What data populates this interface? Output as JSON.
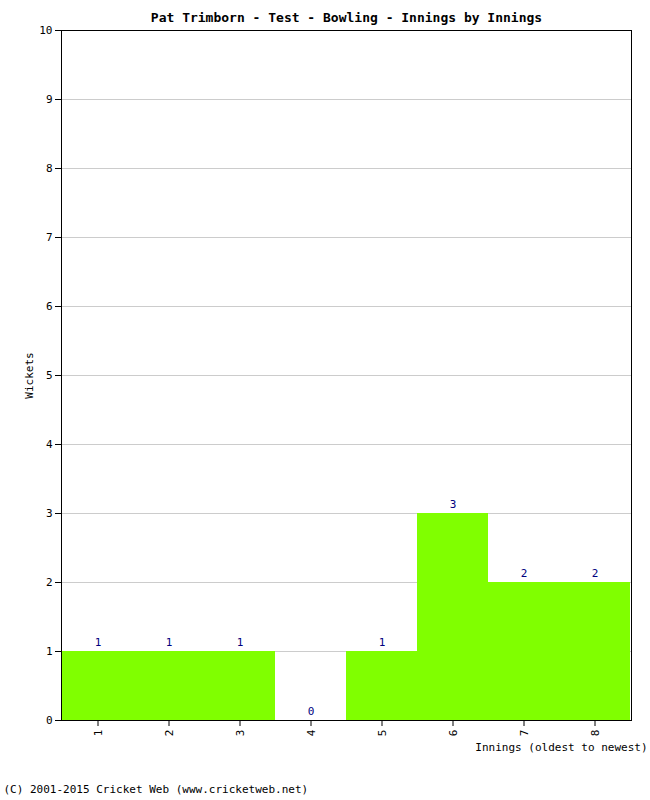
{
  "chart_data": {
    "type": "bar",
    "title": "Pat Trimborn - Test - Bowling - Innings by Innings",
    "x_label": "Innings (oldest to newest)",
    "y_label": "Wickets",
    "caption": "(C) 2001-2015 Cricket Web (www.cricketweb.net)",
    "categories": [
      "1",
      "2",
      "3",
      "4",
      "5",
      "6",
      "7",
      "8"
    ],
    "values": [
      1,
      1,
      1,
      0,
      1,
      3,
      2,
      2
    ],
    "color": "#80ff00",
    "ylim": [
      0,
      10
    ],
    "yticks": [
      0,
      1,
      2,
      3,
      4,
      5,
      6,
      7,
      8,
      9,
      10
    ],
    "grid": true,
    "data_labels": true
  }
}
